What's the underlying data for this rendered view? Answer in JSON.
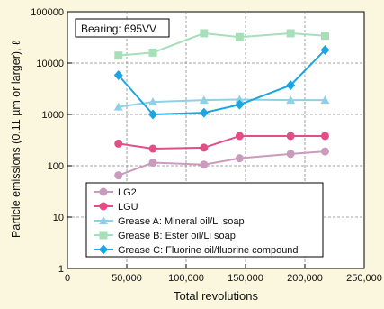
{
  "chart_data": {
    "type": "line",
    "annotation": "Bearing: 695VV",
    "xlabel": "Total revolutions",
    "ylabel": "Particle emissions (0.11 µm or larger), ℓ",
    "x_scale": "linear",
    "y_scale": "log",
    "xlim": [
      0,
      250000
    ],
    "ylim": [
      1,
      100000
    ],
    "x_ticks": [
      0,
      50000,
      100000,
      150000,
      200000,
      250000
    ],
    "x_tick_labels": [
      "0",
      "50,000",
      "100,000",
      "150,000",
      "200,000",
      "250,000"
    ],
    "y_ticks": [
      1,
      10,
      100,
      1000,
      10000,
      100000
    ],
    "y_tick_labels": [
      "1",
      "10",
      "100",
      "1000",
      "10000",
      "100000"
    ],
    "grid": true,
    "legend_position": "bottom-left",
    "series": [
      {
        "name": "LG2",
        "color": "#c99bbd",
        "marker": "circle",
        "x": [
          43000,
          72000,
          115000,
          145000,
          188000,
          217000
        ],
        "y": [
          65,
          115,
          105,
          140,
          170,
          190
        ]
      },
      {
        "name": "LGU",
        "color": "#e24f86",
        "marker": "circle",
        "x": [
          43000,
          72000,
          115000,
          145000,
          188000,
          217000
        ],
        "y": [
          270,
          215,
          225,
          380,
          380,
          380
        ]
      },
      {
        "name": "Grease A: Mineral oil/Li soap",
        "color": "#8fd0e6",
        "marker": "triangle",
        "x": [
          43000,
          72000,
          115000,
          145000,
          188000,
          217000
        ],
        "y": [
          1400,
          1750,
          1900,
          1950,
          1900,
          1900
        ]
      },
      {
        "name": "Grease B: Ester oil/Li soap",
        "color": "#a7dfb8",
        "marker": "square",
        "x": [
          43000,
          72000,
          115000,
          145000,
          188000,
          217000
        ],
        "y": [
          14000,
          16000,
          38000,
          32000,
          38000,
          34000
        ]
      },
      {
        "name": "Grease C: Fluorine oil/fluorine compound",
        "color": "#1aa6e2",
        "marker": "diamond",
        "x": [
          43000,
          72000,
          115000,
          145000,
          188000,
          217000
        ],
        "y": [
          5800,
          1000,
          1080,
          1550,
          3700,
          18000
        ]
      }
    ]
  }
}
